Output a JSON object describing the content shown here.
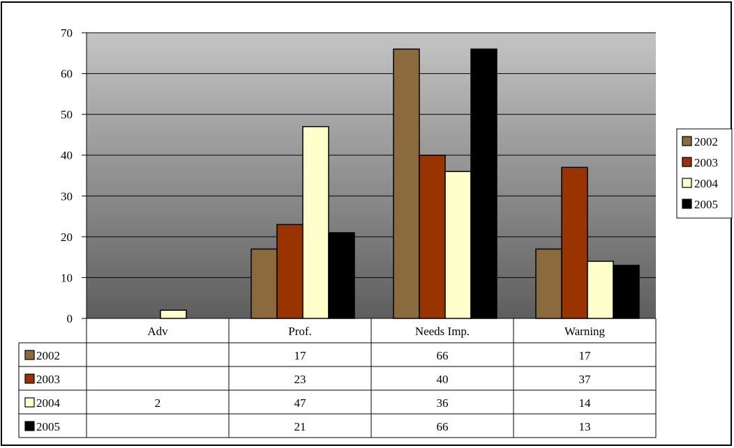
{
  "chart_data": {
    "type": "bar",
    "categories": [
      "Adv",
      "Prof.",
      "Needs Imp.",
      "Warning"
    ],
    "series": [
      {
        "name": "2002",
        "color": "#8b6b3e",
        "values": [
          null,
          17,
          66,
          17
        ]
      },
      {
        "name": "2003",
        "color": "#993300",
        "values": [
          null,
          23,
          40,
          37
        ]
      },
      {
        "name": "2004",
        "color": "#ffffcc",
        "values": [
          2,
          47,
          36,
          14
        ]
      },
      {
        "name": "2005",
        "color": "#000000",
        "values": [
          null,
          21,
          66,
          13
        ]
      }
    ],
    "ylim": [
      0,
      70
    ],
    "yticks": [
      0,
      10,
      20,
      30,
      40,
      50,
      60,
      70
    ],
    "grid": true,
    "legend": "right",
    "data_table": true,
    "plot_background": "gradient gray (light top, dark bottom)"
  }
}
